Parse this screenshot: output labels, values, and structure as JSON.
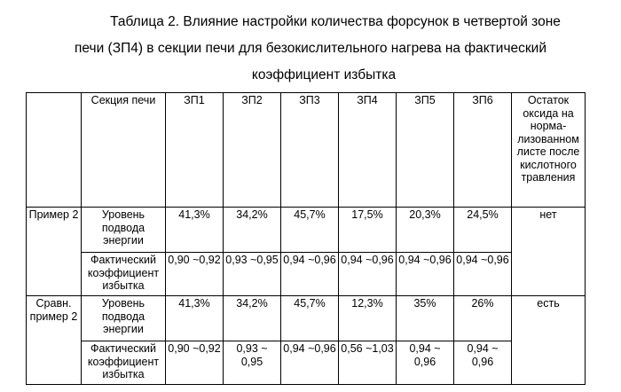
{
  "caption": {
    "line1": "Таблица 2. Влияние настройки количества форсунок в четвертой зоне",
    "line2": "печи (ЗП4) в секции печи для безокислительного нагрева на фактический",
    "line3": "коэффициент избытка"
  },
  "table": {
    "header": {
      "blank": "",
      "section": "Секция печи",
      "zones": [
        "ЗП1",
        "ЗП2",
        "ЗП3",
        "ЗП4",
        "ЗП5",
        "ЗП6"
      ],
      "oxide": "Остаток оксида на норма-лизованном листе после кислотного травления"
    },
    "rows": [
      {
        "name": "Пример 2",
        "oxide": "нет",
        "energy_label": "Уровень подвода энергии",
        "energy": [
          "41,3%",
          "34,2%",
          "45,7%",
          "17,5%",
          "20,3%",
          "24,5%"
        ],
        "coef_label": "Фактический коэффициент избытка",
        "coef": [
          "0,90 ~0,92",
          "0,93 ~0,95",
          "0,94 ~0,96",
          "0,94 ~0,96",
          "0,94 ~0,96",
          "0,94 ~0,96"
        ]
      },
      {
        "name": "Сравн. пример 2",
        "oxide": "есть",
        "energy_label": "Уровень подвода энергии",
        "energy": [
          "41,3%",
          "34,2%",
          "45,7%",
          "12,3%",
          "35%",
          "26%"
        ],
        "coef_label": "Фактический коэффициент избытка",
        "coef": [
          "0,90 ~0,92",
          "0,93 ~ 0,95",
          "0,94 ~0,96",
          "0,56 ~1,03",
          "0,94 ~ 0,96",
          "0,94 ~ 0,96"
        ]
      }
    ]
  }
}
